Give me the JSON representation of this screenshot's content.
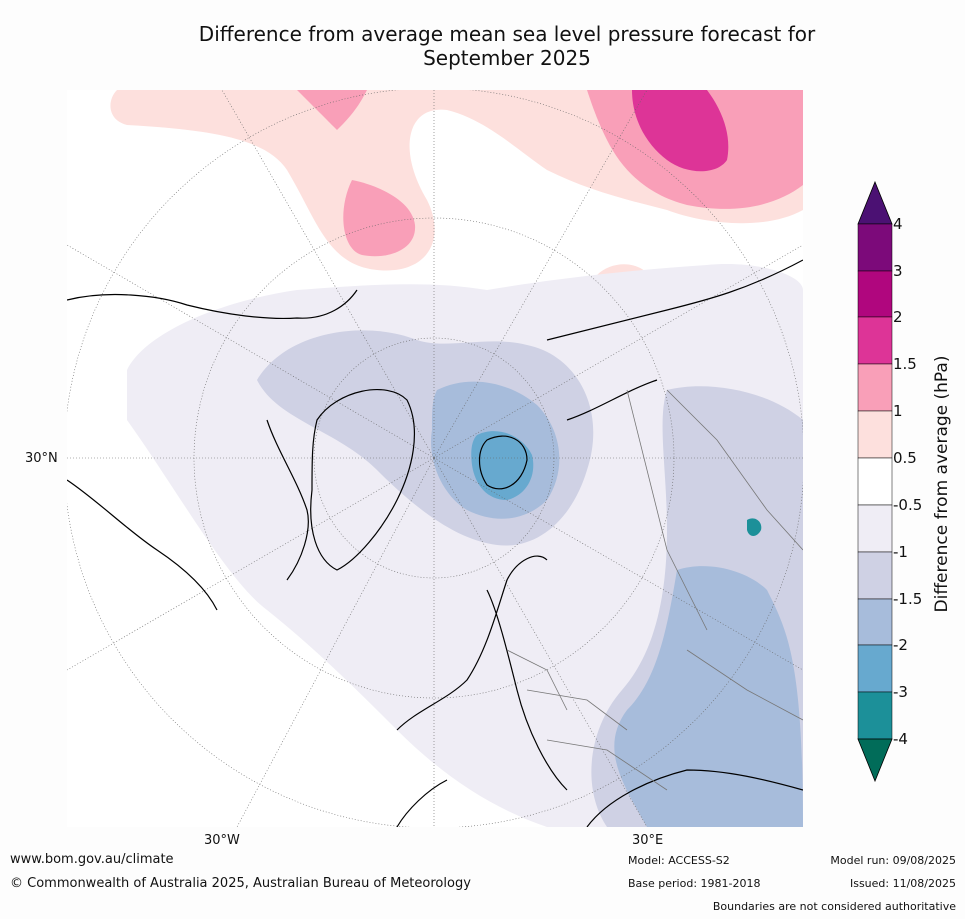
{
  "title_line1": "Difference from average mean sea level pressure forecast for",
  "title_line2": "September 2025",
  "map": {
    "lat_labels": [
      "30°N"
    ],
    "lon_labels": [
      "30°W",
      "30°E"
    ]
  },
  "colorbar": {
    "label": "Difference from average (hPa)",
    "ticks": [
      "4",
      "3",
      "2",
      "1.5",
      "1",
      "0.5",
      "-0.5",
      "-1",
      "-1.5",
      "-2",
      "-3",
      "-4"
    ],
    "colors": {
      "above_4": "#4b1173",
      "3_to_4": "#7c0a7a",
      "2_to_3": "#b0067e",
      "1.5_to_2": "#dd3497",
      "1_to_1.5": "#f99fb8",
      "0.5_to_1": "#fde0dd",
      "-0.5_to_0.5": "#ffffff",
      "-1_to_-0.5": "#efedf5",
      "-1.5_to_-1": "#cfd1e4",
      "-2_to_-1.5": "#a7bcdb",
      "-3_to_-2": "#67a9cf",
      "-4_to_-3": "#1c9099",
      "below_-4": "#016c59"
    }
  },
  "footer": {
    "url": "www.bom.gov.au/climate",
    "copyright": "© Commonwealth of Australia 2025, Australian Bureau of Meteorology",
    "model": "Model: ACCESS-S2",
    "base_period": "Base period: 1981-2018",
    "model_run": "Model run: 09/08/2025",
    "issued": "Issued: 11/08/2025",
    "disclaimer": "Boundaries are not considered authoritative"
  }
}
